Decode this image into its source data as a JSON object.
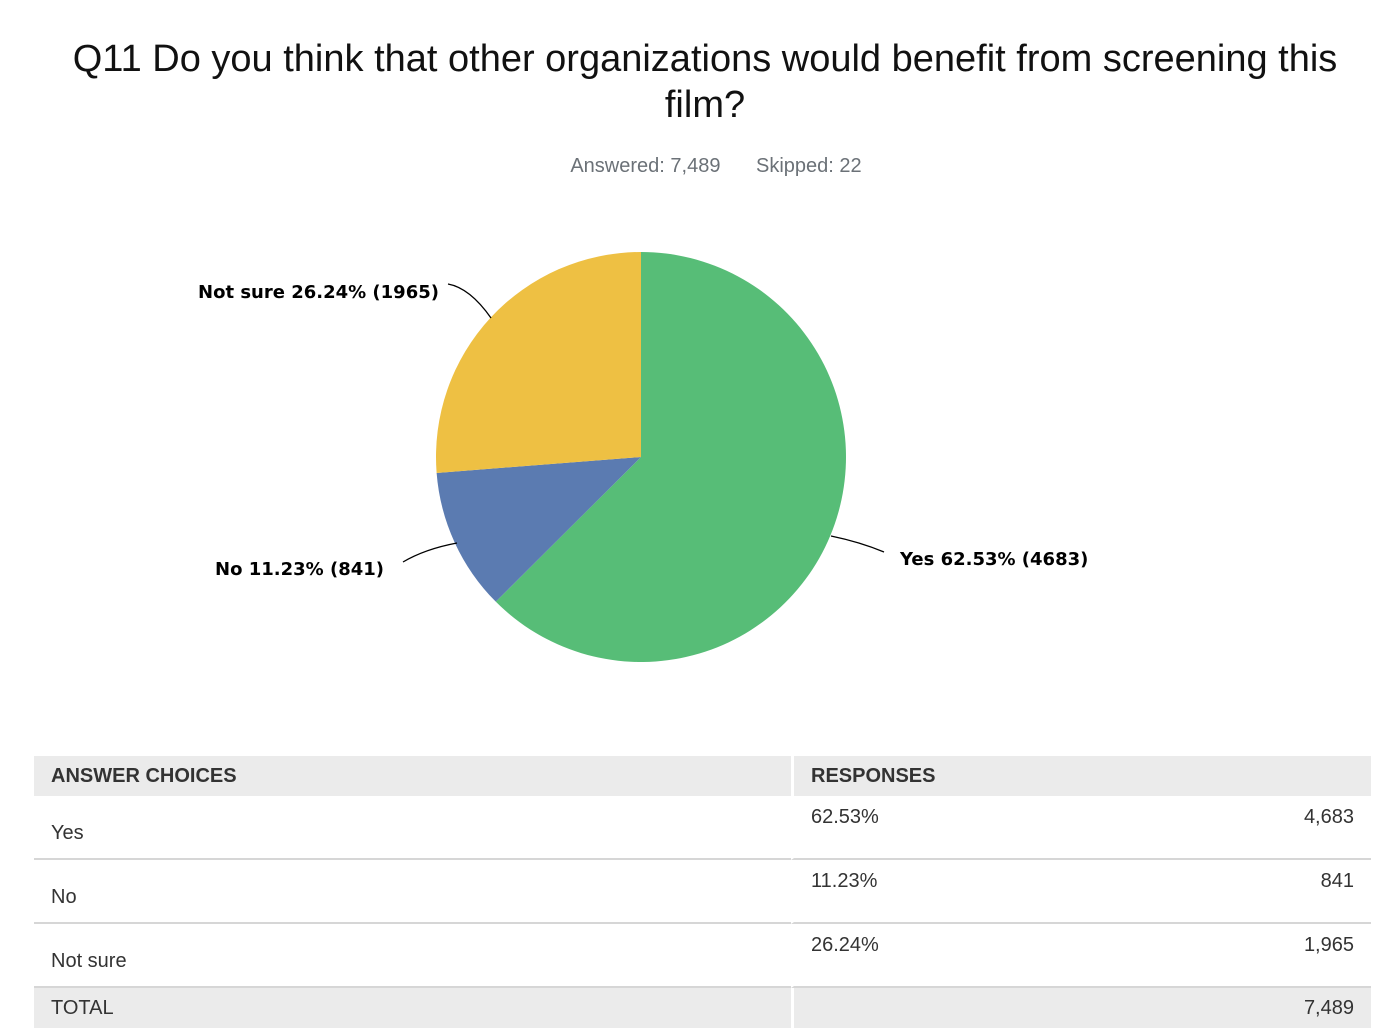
{
  "title": "Q11 Do you think that other organizations would benefit from screening this film?",
  "meta": {
    "answered": "Answered: 7,489",
    "skipped": "Skipped: 22"
  },
  "chart_data": {
    "type": "pie",
    "title": "Q11 Do you think that other organizations would benefit from screening this film?",
    "categories": [
      "Yes",
      "No",
      "Not sure"
    ],
    "values": [
      4683,
      841,
      1965
    ],
    "percentages": [
      62.53,
      11.23,
      26.24
    ],
    "labels": [
      "Yes 62.53% (4683)",
      "No 11.23% (841)",
      "Not sure 26.24% (1965)"
    ],
    "colors": [
      "#57bd77",
      "#5b7bb1",
      "#eec043"
    ]
  },
  "table": {
    "headers": [
      "ANSWER CHOICES",
      "RESPONSES"
    ],
    "rows": [
      {
        "choice": "Yes",
        "percent": "62.53%",
        "count": "4,683"
      },
      {
        "choice": "No",
        "percent": "11.23%",
        "count": "841"
      },
      {
        "choice": "Not sure",
        "percent": "26.24%",
        "count": "1,965"
      }
    ],
    "total_label": "TOTAL",
    "total_count": "7,489"
  }
}
